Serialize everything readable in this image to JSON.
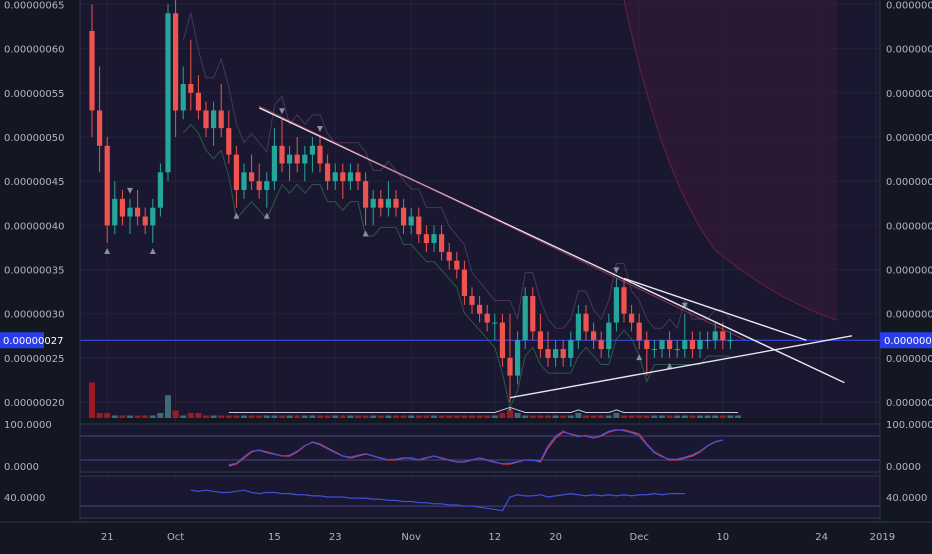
{
  "theme": {
    "bg": "#131722",
    "pane_bg": "#1a1730",
    "grid": "#2a2e39",
    "axis_text": "#b2b5be",
    "up": "#26a69a",
    "down": "#ef5350",
    "vol_up": "#3e6a7a",
    "vol_down": "#9b1b25",
    "last_price_bg": "#2a3de8",
    "rsi_line_red": "#e53935",
    "rsi_line_blue": "#3f51d8",
    "indicator_blue": "#3f51d8",
    "trend_line": "#e6e6f0"
  },
  "chart_data": [
    {
      "type": "candlestick",
      "pane": "price",
      "x_tick_labels": [
        "21",
        "Oct",
        "15",
        "23",
        "Nov",
        "12",
        "20",
        "Dec",
        "10",
        "24",
        "2019"
      ],
      "y_tick_labels": [
        "0.00000065",
        "0.00000060",
        "0.00000055",
        "0.00000050",
        "0.00000045",
        "0.00000040",
        "0.00000035",
        "0.00000030",
        "0.00000025",
        "0.00000020"
      ],
      "ylim": [
        1.82e-07,
        6.55e-07
      ],
      "last_price_label": "0.00000027",
      "last_price": 2.7e-07,
      "ohlc": [
        {
          "o": 6.2e-07,
          "h": 6.5e-07,
          "l": 5e-07,
          "c": 5.3e-07
        },
        {
          "o": 5.3e-07,
          "h": 5.8e-07,
          "l": 4.6e-07,
          "c": 4.9e-07
        },
        {
          "o": 4.9e-07,
          "h": 5e-07,
          "l": 3.8e-07,
          "c": 4e-07
        },
        {
          "o": 4e-07,
          "h": 4.5e-07,
          "l": 3.9e-07,
          "c": 4.3e-07
        },
        {
          "o": 4.3e-07,
          "h": 4.4e-07,
          "l": 4e-07,
          "c": 4.1e-07
        },
        {
          "o": 4.1e-07,
          "h": 4.3e-07,
          "l": 3.9e-07,
          "c": 4.2e-07
        },
        {
          "o": 4.2e-07,
          "h": 4.4e-07,
          "l": 4e-07,
          "c": 4.1e-07
        },
        {
          "o": 4.1e-07,
          "h": 4.2e-07,
          "l": 3.9e-07,
          "c": 4e-07
        },
        {
          "o": 4e-07,
          "h": 4.3e-07,
          "l": 3.8e-07,
          "c": 4.2e-07
        },
        {
          "o": 4.2e-07,
          "h": 4.7e-07,
          "l": 4.1e-07,
          "c": 4.6e-07
        },
        {
          "o": 4.6e-07,
          "h": 6.5e-07,
          "l": 4.5e-07,
          "c": 6.4e-07
        },
        {
          "o": 6.4e-07,
          "h": 6.6e-07,
          "l": 5e-07,
          "c": 5.3e-07
        },
        {
          "o": 5.3e-07,
          "h": 5.8e-07,
          "l": 5.2e-07,
          "c": 5.6e-07
        },
        {
          "o": 5.6e-07,
          "h": 6.1e-07,
          "l": 5.3e-07,
          "c": 5.5e-07
        },
        {
          "o": 5.5e-07,
          "h": 5.7e-07,
          "l": 5.2e-07,
          "c": 5.3e-07
        },
        {
          "o": 5.3e-07,
          "h": 5.4e-07,
          "l": 5e-07,
          "c": 5.1e-07
        },
        {
          "o": 5.1e-07,
          "h": 5.4e-07,
          "l": 4.9e-07,
          "c": 5.3e-07
        },
        {
          "o": 5.3e-07,
          "h": 5.6e-07,
          "l": 5e-07,
          "c": 5.1e-07
        },
        {
          "o": 5.1e-07,
          "h": 5.3e-07,
          "l": 4.7e-07,
          "c": 4.8e-07
        },
        {
          "o": 4.8e-07,
          "h": 4.9e-07,
          "l": 4.2e-07,
          "c": 4.4e-07
        },
        {
          "o": 4.4e-07,
          "h": 4.7e-07,
          "l": 4.3e-07,
          "c": 4.6e-07
        },
        {
          "o": 4.6e-07,
          "h": 4.8e-07,
          "l": 4.4e-07,
          "c": 4.5e-07
        },
        {
          "o": 4.5e-07,
          "h": 4.7e-07,
          "l": 4.3e-07,
          "c": 4.4e-07
        },
        {
          "o": 4.4e-07,
          "h": 4.6e-07,
          "l": 4.2e-07,
          "c": 4.5e-07
        },
        {
          "o": 4.5e-07,
          "h": 5.1e-07,
          "l": 4.4e-07,
          "c": 4.9e-07
        },
        {
          "o": 4.9e-07,
          "h": 5.2e-07,
          "l": 4.6e-07,
          "c": 4.7e-07
        },
        {
          "o": 4.7e-07,
          "h": 4.9e-07,
          "l": 4.5e-07,
          "c": 4.8e-07
        },
        {
          "o": 4.8e-07,
          "h": 5e-07,
          "l": 4.6e-07,
          "c": 4.7e-07
        },
        {
          "o": 4.7e-07,
          "h": 4.9e-07,
          "l": 4.5e-07,
          "c": 4.8e-07
        },
        {
          "o": 4.8e-07,
          "h": 5e-07,
          "l": 4.6e-07,
          "c": 4.9e-07
        },
        {
          "o": 4.9e-07,
          "h": 5e-07,
          "l": 4.6e-07,
          "c": 4.7e-07
        },
        {
          "o": 4.7e-07,
          "h": 4.8e-07,
          "l": 4.4e-07,
          "c": 4.5e-07
        },
        {
          "o": 4.5e-07,
          "h": 4.7e-07,
          "l": 4.4e-07,
          "c": 4.6e-07
        },
        {
          "o": 4.6e-07,
          "h": 4.7e-07,
          "l": 4.3e-07,
          "c": 4.5e-07
        },
        {
          "o": 4.5e-07,
          "h": 4.7e-07,
          "l": 4.4e-07,
          "c": 4.6e-07
        },
        {
          "o": 4.6e-07,
          "h": 4.7e-07,
          "l": 4.4e-07,
          "c": 4.5e-07
        },
        {
          "o": 4.5e-07,
          "h": 4.6e-07,
          "l": 4e-07,
          "c": 4.2e-07
        },
        {
          "o": 4.2e-07,
          "h": 4.4e-07,
          "l": 4e-07,
          "c": 4.3e-07
        },
        {
          "o": 4.3e-07,
          "h": 4.4e-07,
          "l": 4.1e-07,
          "c": 4.2e-07
        },
        {
          "o": 4.2e-07,
          "h": 4.5e-07,
          "l": 4.1e-07,
          "c": 4.3e-07
        },
        {
          "o": 4.3e-07,
          "h": 4.4e-07,
          "l": 4.1e-07,
          "c": 4.2e-07
        },
        {
          "o": 4.2e-07,
          "h": 4.3e-07,
          "l": 3.9e-07,
          "c": 4e-07
        },
        {
          "o": 4e-07,
          "h": 4.2e-07,
          "l": 3.9e-07,
          "c": 4.1e-07
        },
        {
          "o": 4.1e-07,
          "h": 4.2e-07,
          "l": 3.8e-07,
          "c": 3.9e-07
        },
        {
          "o": 3.9e-07,
          "h": 4e-07,
          "l": 3.7e-07,
          "c": 3.8e-07
        },
        {
          "o": 3.8e-07,
          "h": 4e-07,
          "l": 3.7e-07,
          "c": 3.9e-07
        },
        {
          "o": 3.9e-07,
          "h": 4e-07,
          "l": 3.6e-07,
          "c": 3.7e-07
        },
        {
          "o": 3.7e-07,
          "h": 3.8e-07,
          "l": 3.5e-07,
          "c": 3.6e-07
        },
        {
          "o": 3.6e-07,
          "h": 3.7e-07,
          "l": 3.4e-07,
          "c": 3.5e-07
        },
        {
          "o": 3.5e-07,
          "h": 3.6e-07,
          "l": 3.1e-07,
          "c": 3.2e-07
        },
        {
          "o": 3.2e-07,
          "h": 3.3e-07,
          "l": 3e-07,
          "c": 3.1e-07
        },
        {
          "o": 3.1e-07,
          "h": 3.2e-07,
          "l": 2.9e-07,
          "c": 3e-07
        },
        {
          "o": 3e-07,
          "h": 3.1e-07,
          "l": 2.8e-07,
          "c": 2.9e-07
        },
        {
          "o": 2.9e-07,
          "h": 3e-07,
          "l": 2.7e-07,
          "c": 2.9e-07
        },
        {
          "o": 2.9e-07,
          "h": 3e-07,
          "l": 2.4e-07,
          "c": 2.5e-07
        },
        {
          "o": 2.5e-07,
          "h": 3e-07,
          "l": 2e-07,
          "c": 2.3e-07
        },
        {
          "o": 2.3e-07,
          "h": 2.8e-07,
          "l": 2.2e-07,
          "c": 2.7e-07
        },
        {
          "o": 2.7e-07,
          "h": 3.3e-07,
          "l": 2.6e-07,
          "c": 3.2e-07
        },
        {
          "o": 3.2e-07,
          "h": 3.3e-07,
          "l": 2.7e-07,
          "c": 2.8e-07
        },
        {
          "o": 2.8e-07,
          "h": 3e-07,
          "l": 2.5e-07,
          "c": 2.6e-07
        },
        {
          "o": 2.6e-07,
          "h": 2.8e-07,
          "l": 2.4e-07,
          "c": 2.5e-07
        },
        {
          "o": 2.5e-07,
          "h": 2.7e-07,
          "l": 2.4e-07,
          "c": 2.6e-07
        },
        {
          "o": 2.6e-07,
          "h": 2.7e-07,
          "l": 2.4e-07,
          "c": 2.5e-07
        },
        {
          "o": 2.5e-07,
          "h": 2.8e-07,
          "l": 2.4e-07,
          "c": 2.7e-07
        },
        {
          "o": 2.7e-07,
          "h": 3.1e-07,
          "l": 2.6e-07,
          "c": 3e-07
        },
        {
          "o": 3e-07,
          "h": 3.1e-07,
          "l": 2.7e-07,
          "c": 2.8e-07
        },
        {
          "o": 2.8e-07,
          "h": 2.9e-07,
          "l": 2.6e-07,
          "c": 2.7e-07
        },
        {
          "o": 2.7e-07,
          "h": 2.8e-07,
          "l": 2.5e-07,
          "c": 2.6e-07
        },
        {
          "o": 2.6e-07,
          "h": 3e-07,
          "l": 2.5e-07,
          "c": 2.9e-07
        },
        {
          "o": 2.9e-07,
          "h": 3.4e-07,
          "l": 2.8e-07,
          "c": 3.3e-07
        },
        {
          "o": 3.3e-07,
          "h": 3.4e-07,
          "l": 2.9e-07,
          "c": 3e-07
        },
        {
          "o": 3e-07,
          "h": 3.1e-07,
          "l": 2.8e-07,
          "c": 2.9e-07
        },
        {
          "o": 2.9e-07,
          "h": 3e-07,
          "l": 2.6e-07,
          "c": 2.7e-07
        },
        {
          "o": 2.7e-07,
          "h": 2.8e-07,
          "l": 2.3e-07,
          "c": 2.6e-07
        },
        {
          "o": 2.6e-07,
          "h": 2.7e-07,
          "l": 2.5e-07,
          "c": 2.6e-07
        },
        {
          "o": 2.6e-07,
          "h": 2.7e-07,
          "l": 2.5e-07,
          "c": 2.7e-07
        },
        {
          "o": 2.7e-07,
          "h": 2.8e-07,
          "l": 2.5e-07,
          "c": 2.6e-07
        },
        {
          "o": 2.6e-07,
          "h": 2.7e-07,
          "l": 2.5e-07,
          "c": 2.6e-07
        },
        {
          "o": 2.6e-07,
          "h": 3e-07,
          "l": 2.5e-07,
          "c": 2.7e-07
        },
        {
          "o": 2.7e-07,
          "h": 2.8e-07,
          "l": 2.5e-07,
          "c": 2.6e-07
        },
        {
          "o": 2.6e-07,
          "h": 2.8e-07,
          "l": 2.5e-07,
          "c": 2.7e-07
        },
        {
          "o": 2.7e-07,
          "h": 2.8e-07,
          "l": 2.6e-07,
          "c": 2.7e-07
        },
        {
          "o": 2.7e-07,
          "h": 2.9e-07,
          "l": 2.6e-07,
          "c": 2.8e-07
        },
        {
          "o": 2.8e-07,
          "h": 2.9e-07,
          "l": 2.6e-07,
          "c": 2.7e-07
        },
        {
          "o": 2.7e-07,
          "h": 2.8e-07,
          "l": 2.6e-07,
          "c": 2.7e-07
        }
      ],
      "signal_markers": [
        {
          "bar": 2,
          "dir": "up"
        },
        {
          "bar": 5,
          "dir": "down"
        },
        {
          "bar": 8,
          "dir": "up"
        },
        {
          "bar": 19,
          "dir": "up"
        },
        {
          "bar": 23,
          "dir": "up"
        },
        {
          "bar": 25,
          "dir": "down"
        },
        {
          "bar": 30,
          "dir": "down"
        },
        {
          "bar": 36,
          "dir": "up"
        },
        {
          "bar": 55,
          "dir": "up"
        },
        {
          "bar": 69,
          "dir": "down"
        },
        {
          "bar": 72,
          "dir": "up"
        },
        {
          "bar": 78,
          "dir": "down"
        },
        {
          "bar": 76,
          "dir": "up"
        }
      ],
      "trendlines": [
        {
          "from": [
            22,
            5.33e-07
          ],
          "to": [
            99,
            2.22e-07
          ]
        },
        {
          "from": [
            70,
            3.4e-07
          ],
          "to": [
            94,
            2.7e-07
          ]
        },
        {
          "from": [
            55,
            2.05e-07
          ],
          "to": [
            100,
            2.75e-07
          ]
        }
      ]
    },
    {
      "type": "bar",
      "pane": "volume",
      "values": [
        14,
        2,
        2,
        1,
        1,
        1,
        1,
        1,
        1,
        2,
        9,
        3,
        1,
        2,
        2,
        1,
        1,
        1,
        1,
        1,
        1,
        1,
        1,
        1,
        1,
        1,
        1,
        1,
        1,
        1,
        1,
        1,
        1,
        1,
        1,
        1,
        1,
        1,
        1,
        1,
        1,
        1,
        1,
        1,
        1,
        1,
        1,
        1,
        1,
        1,
        1,
        1,
        1,
        1,
        2,
        3,
        2,
        1,
        1,
        1,
        1,
        1,
        1,
        1,
        2,
        1,
        1,
        1,
        1,
        2,
        1,
        1,
        1,
        1,
        1,
        1,
        1,
        1,
        1,
        1,
        1,
        1,
        1,
        1,
        1,
        1
      ],
      "ylim": [
        0,
        15
      ]
    },
    {
      "type": "line",
      "pane": "oscillator",
      "y_tick_labels": [
        "100.0000",
        "0.0000"
      ],
      "ylim": [
        0,
        100
      ],
      "series": [
        {
          "color": "red",
          "values": [
            null,
            null,
            null,
            null,
            null,
            null,
            null,
            null,
            null,
            null,
            null,
            null,
            5,
            10,
            25,
            40,
            45,
            40,
            35,
            30,
            30,
            40,
            55,
            65,
            60,
            50,
            40,
            30,
            25,
            30,
            35,
            30,
            25,
            20,
            20,
            25,
            25,
            20,
            25,
            30,
            25,
            20,
            15,
            15,
            20,
            25,
            20,
            15,
            10,
            10,
            15,
            20,
            20,
            15,
            50,
            75,
            90,
            85,
            80,
            80,
            75,
            80,
            90,
            95,
            95,
            90,
            85,
            60,
            40,
            30,
            20,
            20,
            25,
            30,
            40,
            55,
            65,
            70
          ]
        },
        {
          "color": "blue",
          "values": [
            null,
            null,
            null,
            null,
            null,
            null,
            null,
            null,
            null,
            null,
            null,
            null,
            8,
            12,
            28,
            42,
            44,
            38,
            34,
            30,
            32,
            42,
            56,
            64,
            58,
            48,
            38,
            30,
            27,
            32,
            36,
            30,
            24,
            21,
            22,
            26,
            24,
            21,
            26,
            30,
            24,
            19,
            15,
            16,
            21,
            24,
            19,
            14,
            11,
            12,
            16,
            20,
            19,
            18,
            55,
            80,
            92,
            84,
            78,
            82,
            76,
            82,
            92,
            96,
            93,
            88,
            80,
            58,
            38,
            28,
            22,
            22,
            27,
            33,
            42,
            56,
            66,
            70
          ]
        }
      ]
    },
    {
      "type": "line",
      "pane": "indicator",
      "y_tick_labels": [
        "40.0000"
      ],
      "ylim": [
        25,
        55
      ],
      "series": [
        {
          "color": "blue",
          "values": [
            null,
            null,
            null,
            null,
            null,
            null,
            null,
            null,
            null,
            null,
            null,
            null,
            46,
            45,
            46,
            45,
            44,
            44,
            45,
            46,
            44,
            43,
            44,
            44,
            43,
            43,
            42,
            42,
            41,
            41,
            40,
            40,
            40,
            39,
            39,
            39,
            38,
            38,
            37,
            37,
            36,
            36,
            35,
            35,
            34,
            34,
            33,
            33,
            32,
            32,
            31,
            30,
            29,
            28,
            40,
            42,
            41,
            41,
            42,
            40,
            41,
            42,
            43,
            42,
            41,
            42,
            41,
            42,
            41,
            42,
            41,
            42,
            42,
            43,
            42,
            43,
            43,
            43
          ]
        }
      ]
    }
  ]
}
